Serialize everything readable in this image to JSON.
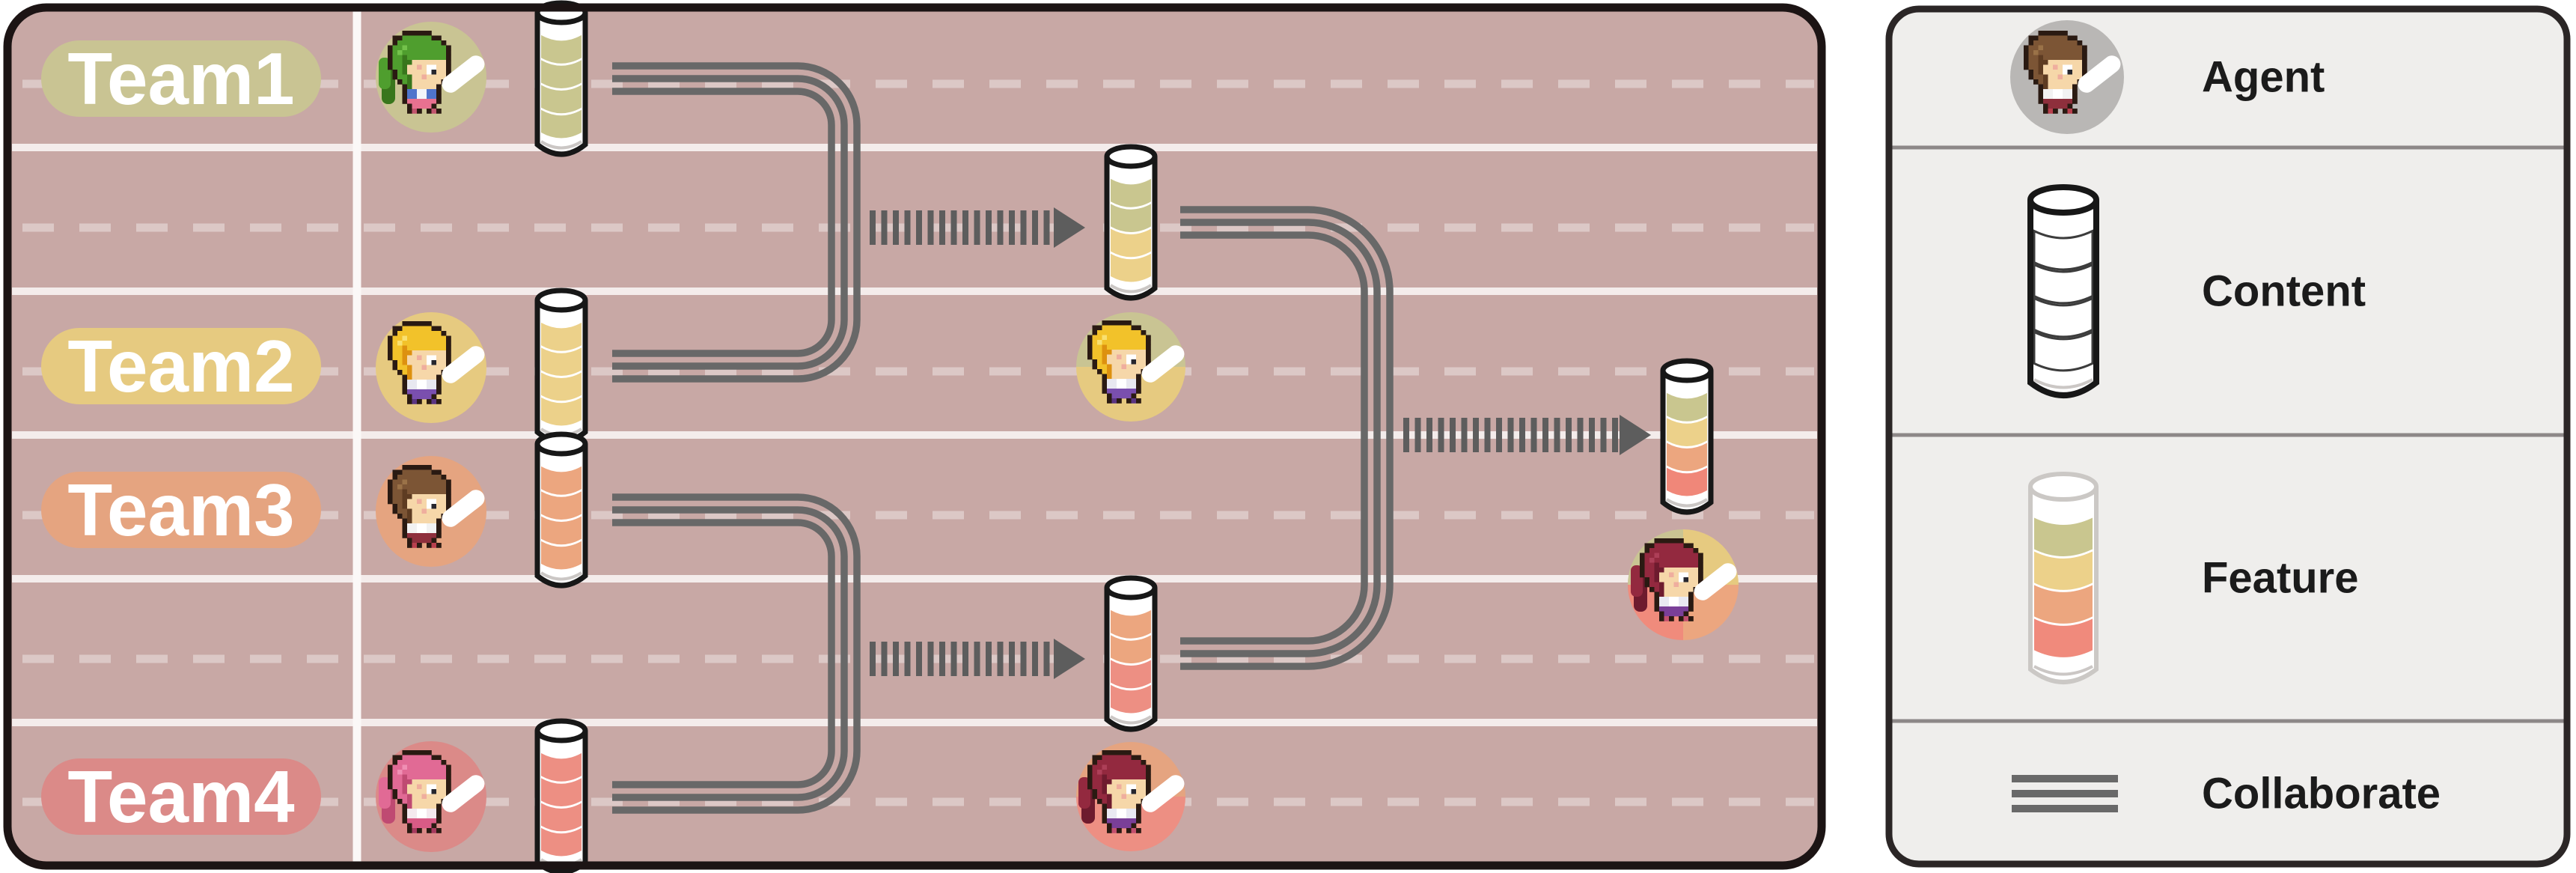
{
  "panel": {
    "background_color": "#c8a8a5",
    "border_color": "#1c1414",
    "lane_guide_color": "#f4eceb",
    "lane_dash_color": "#dcc8c6",
    "separator_color": "#fbf8f7",
    "rail_color": "#686868",
    "arrow_color": "#5d5d5d",
    "teams": [
      {
        "label": "Team1",
        "color": "#c9c493",
        "agent": {
          "sprite": "green",
          "hair_color": "#4f9e2e"
        },
        "cylinder_segments": [
          "#c9c68f",
          "#c9c68f",
          "#c9c68f",
          "#c9c68f"
        ]
      },
      {
        "label": "Team2",
        "color": "#e6ca80",
        "agent": {
          "sprite": "blonde",
          "hair_color": "#f2c22a"
        },
        "cylinder_segments": [
          "#ecd18a",
          "#ecd18a",
          "#ecd18a",
          "#ecd18a"
        ]
      },
      {
        "label": "Team3",
        "color": "#e5a480",
        "agent": {
          "sprite": "brown",
          "hair_color": "#7c5535"
        },
        "cylinder_segments": [
          "#eca67f",
          "#eca67f",
          "#eca67f",
          "#eca67f"
        ]
      },
      {
        "label": "Team4",
        "color": "#db8a88",
        "agent": {
          "sprite": "pink",
          "hair_color": "#e16a95"
        },
        "cylinder_segments": [
          "#ed8f83",
          "#ed8f83",
          "#ed8f83",
          "#ed8f83"
        ]
      }
    ],
    "merges": [
      {
        "name": "team1-team2-merged-content",
        "cylinder_segments": [
          "#c9c68f",
          "#c9c68f",
          "#ecd18a",
          "#ecd18a"
        ],
        "agent_bg": [
          "#c9c493",
          "#e6ca80"
        ],
        "agent": {
          "sprite": "blonde"
        }
      },
      {
        "name": "team3-team4-merged-content",
        "cylinder_segments": [
          "#eca67f",
          "#eca67f",
          "#ed8f83",
          "#ed8f83"
        ],
        "agent_bg": [
          "#e5a480",
          "#ed8f83"
        ],
        "agent": {
          "sprite": "maroon"
        }
      },
      {
        "name": "all-teams-merged-feature",
        "cylinder_segments": [
          "#c9c68f",
          "#ecd18a",
          "#eca67f",
          "#f08779"
        ],
        "agent_bg": [
          "#c9c493",
          "#e6ca80",
          "#f08b7c",
          "#eca67f"
        ],
        "agent": {
          "sprite": "maroon"
        }
      }
    ],
    "collaborations": [
      {
        "teams": [
          "Team1",
          "Team2"
        ],
        "result": "shared content cylinder in lane 2"
      },
      {
        "teams": [
          "Team3",
          "Team4"
        ],
        "result": "shared content cylinder in lane 5"
      },
      {
        "teams": [
          "Team1",
          "Team2",
          "Team3",
          "Team4"
        ],
        "result": "final combined feature cylinder"
      }
    ]
  },
  "legend": {
    "background_color": "#efeeec",
    "border_color": "#2b2626",
    "divider_color": "#8d8888",
    "agent_icon_bg": "#b9b7b5",
    "collaborate_color": "#696969",
    "feature_segments": [
      "#c9c68f",
      "#ecd18a",
      "#eca67f",
      "#f08a7c"
    ],
    "items": [
      {
        "label": "Agent"
      },
      {
        "label": "Content"
      },
      {
        "label": "Feature"
      },
      {
        "label": "Collaborate"
      }
    ]
  }
}
